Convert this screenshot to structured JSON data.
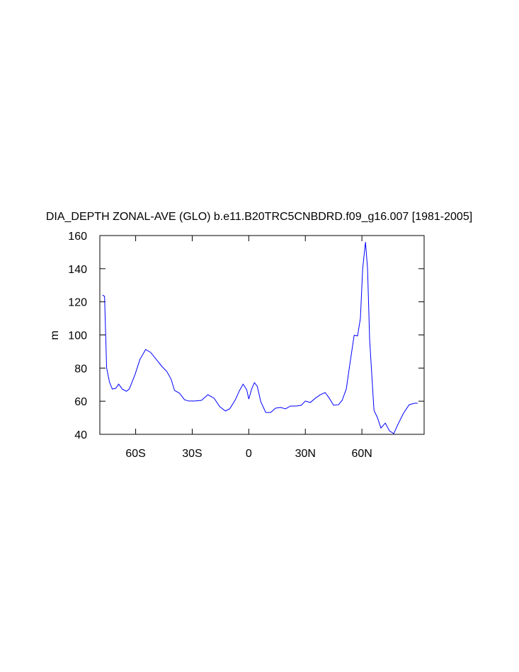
{
  "chart_data": {
    "type": "line",
    "title": "DIA_DEPTH ZONAL-AVE (GLO) b.e11.B20TRC5CNBDRD.f09_g16.007 [1981-2005]",
    "ylabel": "m",
    "x": [
      -77.6,
      -76.5,
      -75.4,
      -73.9,
      -72.4,
      -70.5,
      -69,
      -67.1,
      -64.9,
      -63.4,
      -60.4,
      -57.7,
      -54.7,
      -52.1,
      -49.1,
      -46.1,
      -43.5,
      -41.2,
      -39.4,
      -36.7,
      -34.1,
      -31.9,
      -28.5,
      -25.1,
      -21.7,
      -18.4,
      -15.4,
      -12.4,
      -10.1,
      -7.1,
      -4.9,
      -3,
      -1.1,
      0,
      1.5,
      3,
      4.5,
      6.4,
      9,
      11.6,
      14.2,
      16.9,
      19.5,
      22.1,
      25.1,
      27.8,
      30,
      32.6,
      35.3,
      37.9,
      40.5,
      42.7,
      45,
      47.6,
      49.5,
      51.7,
      53.6,
      55.9,
      57.7,
      59.2,
      60.4,
      61.9,
      63,
      64.1,
      66.4,
      68.2,
      70.1,
      72.4,
      74.6,
      76.9,
      79.1,
      82.1,
      85.1,
      88.1,
      89.6
    ],
    "series": [
      {
        "color": "#0000ff",
        "values": [
          124.1,
          123.3,
          80.1,
          71.6,
          67.3,
          67.8,
          70.3,
          67.3,
          66,
          67.3,
          75.9,
          85.3,
          91.2,
          89.5,
          85.3,
          81,
          78,
          73.3,
          66.5,
          64.8,
          60.9,
          60.1,
          60.1,
          60.5,
          63.9,
          61.8,
          56.7,
          54.1,
          55.4,
          60.9,
          66.5,
          70.3,
          66.9,
          61.3,
          67.3,
          71.2,
          69,
          59.6,
          53.2,
          53.2,
          55.8,
          56.2,
          55.4,
          57.1,
          57.1,
          57.5,
          60.1,
          59.2,
          61.8,
          63.9,
          65.2,
          61.8,
          57.5,
          57.9,
          60.5,
          67.3,
          82.3,
          99.8,
          99.4,
          110,
          139.9,
          156.1,
          139.9,
          97.2,
          54.5,
          50.2,
          43.8,
          46.8,
          42.1,
          40.4,
          46,
          52.8,
          57.9,
          58.8,
          58.8
        ]
      }
    ],
    "xlim": [
      -79,
      93
    ],
    "xticks": [
      {
        "value": -60,
        "label": "60S"
      },
      {
        "value": -30,
        "label": "30S"
      },
      0,
      {
        "value": 30,
        "label": "30N"
      },
      {
        "value": 60,
        "label": "60N"
      }
    ],
    "ylim": [
      40,
      160
    ],
    "yticks": [
      40,
      60,
      80,
      100,
      120,
      140,
      160
    ]
  }
}
